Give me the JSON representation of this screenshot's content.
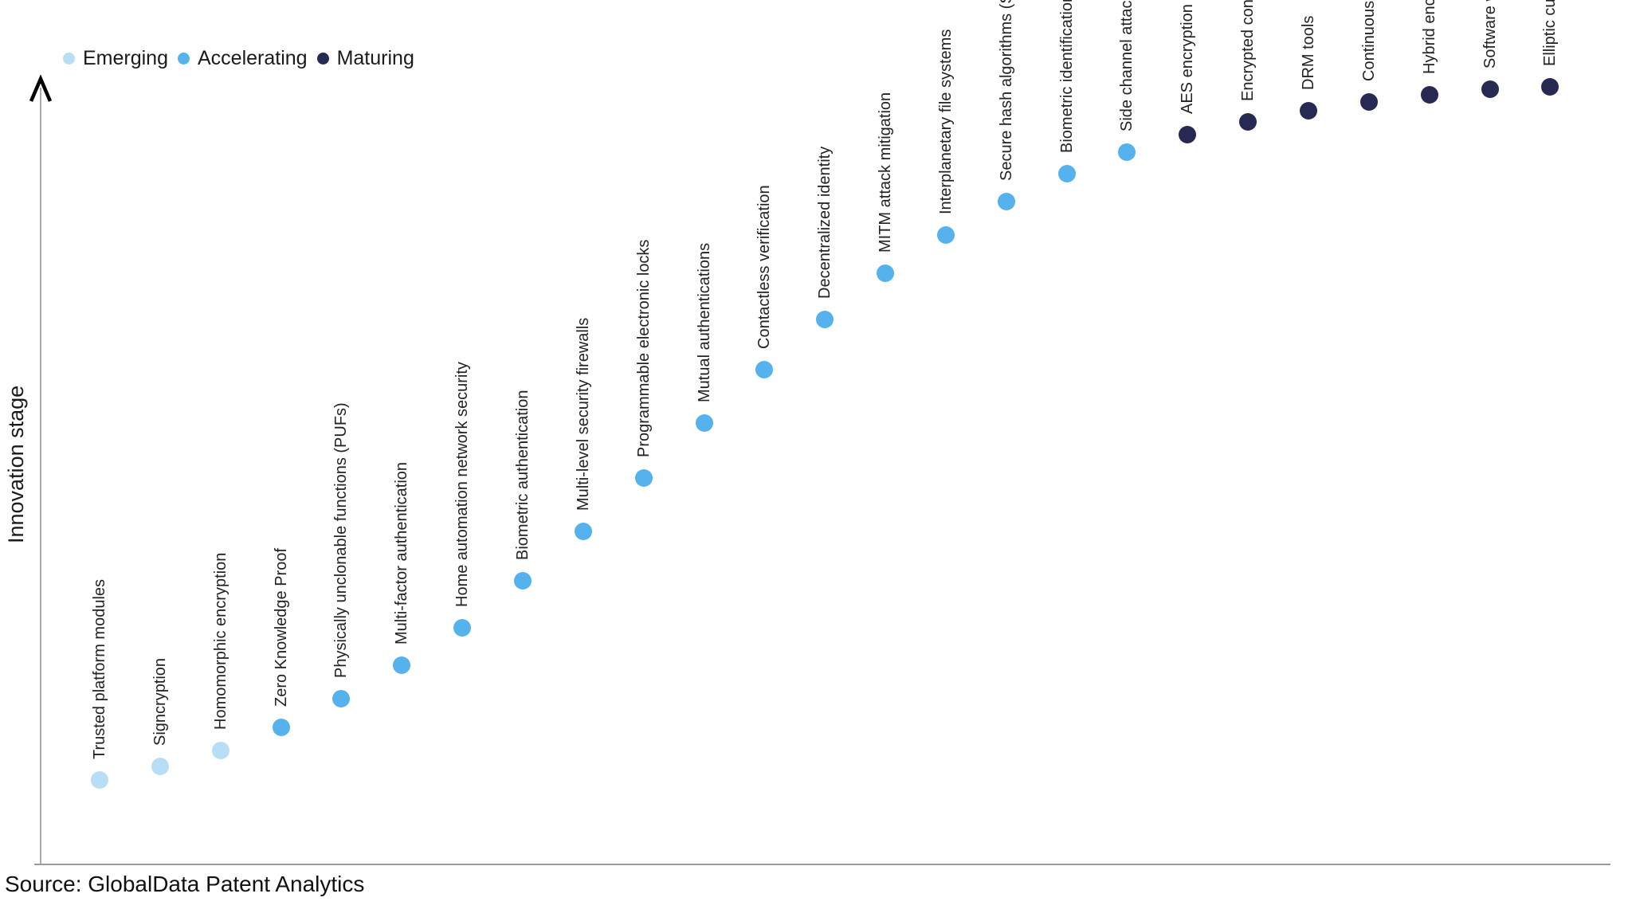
{
  "legend": {
    "items": [
      {
        "label": "Emerging",
        "color": "#b8def5"
      },
      {
        "label": "Accelerating",
        "color": "#55b2ec"
      },
      {
        "label": "Maturing",
        "color": "#262a52"
      }
    ]
  },
  "source": {
    "text": "Source: GlobalData Patent Analytics"
  },
  "chart_data": {
    "type": "scatter",
    "title": "",
    "xlabel": "",
    "ylabel": "Innovation stage",
    "ylim": [
      0,
      100
    ],
    "y_axis_ticks": [],
    "x_axis_ticks": [],
    "grid": false,
    "legend_position": "top-left",
    "series_note": "single S-curve of technologies ordered by innovation stage; category gives marker color",
    "points": [
      {
        "label": "Trusted platform modules",
        "category": "Emerging",
        "stage": 10.9
      },
      {
        "label": "Signcryption",
        "category": "Emerging",
        "stage": 12.6
      },
      {
        "label": "Homomorphic encryption",
        "category": "Emerging",
        "stage": 14.7
      },
      {
        "label": "Zero Knowledge Proof",
        "category": "Accelerating",
        "stage": 17.6
      },
      {
        "label": "Physically unclonable functions (PUFs)",
        "category": "Accelerating",
        "stage": 21.3
      },
      {
        "label": "Multi-factor authentication",
        "category": "Accelerating",
        "stage": 25.6
      },
      {
        "label": "Home automation network security",
        "category": "Accelerating",
        "stage": 30.4
      },
      {
        "label": "Biometric authentication",
        "category": "Accelerating",
        "stage": 36.4
      },
      {
        "label": "Multi-level security firewalls",
        "category": "Accelerating",
        "stage": 42.7
      },
      {
        "label": "Programmable electronic locks",
        "category": "Accelerating",
        "stage": 49.5
      },
      {
        "label": "Mutual authentications",
        "category": "Accelerating",
        "stage": 56.6
      },
      {
        "label": "Contactless verification",
        "category": "Accelerating",
        "stage": 63.4
      },
      {
        "label": "Decentralized identity",
        "category": "Accelerating",
        "stage": 69.8
      },
      {
        "label": "MITM attack mitigation",
        "category": "Accelerating",
        "stage": 75.7
      },
      {
        "label": "Interplanetary file systems",
        "category": "Accelerating",
        "stage": 80.6
      },
      {
        "label": "Secure hash algorithms (SHA)",
        "category": "Accelerating",
        "stage": 84.9
      },
      {
        "label": "Biometric identification and monitoring",
        "category": "Accelerating",
        "stage": 88.5
      },
      {
        "label": "Side channel attack mitigation",
        "category": "Accelerating",
        "stage": 91.2
      },
      {
        "label": "AES encryption",
        "category": "Maturing",
        "stage": 93.5
      },
      {
        "label": "Encrypted content distribution",
        "category": "Maturing",
        "stage": 95.1
      },
      {
        "label": "DRM tools",
        "category": "Maturing",
        "stage": 96.5
      },
      {
        "label": "Continuous authentication",
        "category": "Maturing",
        "stage": 97.7
      },
      {
        "label": "Hybrid encryption algorithm",
        "category": "Maturing",
        "stage": 98.6
      },
      {
        "label": "Software watermarking",
        "category": "Maturing",
        "stage": 99.3
      },
      {
        "label": "Elliptic curve cryptography",
        "category": "Maturing",
        "stage": 99.6
      }
    ]
  }
}
